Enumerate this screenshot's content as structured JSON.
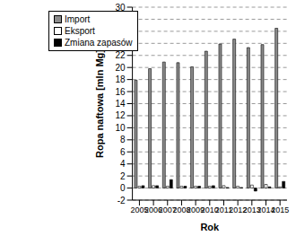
{
  "chart_data": {
    "type": "bar",
    "x_label": "Rok",
    "y_label": "Ropa naftowa  [mln Mg]",
    "categories": [
      "2005",
      "2006",
      "2007",
      "2008",
      "2009",
      "2010",
      "2011",
      "2012",
      "2013",
      "2014",
      "2015"
    ],
    "series": [
      {
        "name": "Import",
        "color": "#8c8c8c",
        "values": [
          17.9,
          19.8,
          20.9,
          20.8,
          20.1,
          22.7,
          23.9,
          24.7,
          23.3,
          23.8,
          26.5
        ]
      },
      {
        "name": "Eksport",
        "color": "#ffffff",
        "values": [
          0.3,
          0.4,
          0.3,
          0.3,
          0.3,
          0.3,
          0.4,
          0.3,
          0.5,
          0.6,
          0.2
        ]
      },
      {
        "name": "Zmiana zapasów",
        "color": "#000000",
        "values": [
          0.4,
          0.4,
          1.4,
          0.3,
          0.3,
          0.4,
          0.1,
          0.1,
          -0.5,
          0.2,
          1.1
        ]
      }
    ],
    "ylim": [
      -2,
      30
    ],
    "yticks": [
      -2,
      0,
      2,
      4,
      6,
      8,
      10,
      12,
      14,
      16,
      18,
      20,
      22,
      24,
      26,
      28,
      30
    ],
    "grid": true,
    "legend": "upper left"
  }
}
